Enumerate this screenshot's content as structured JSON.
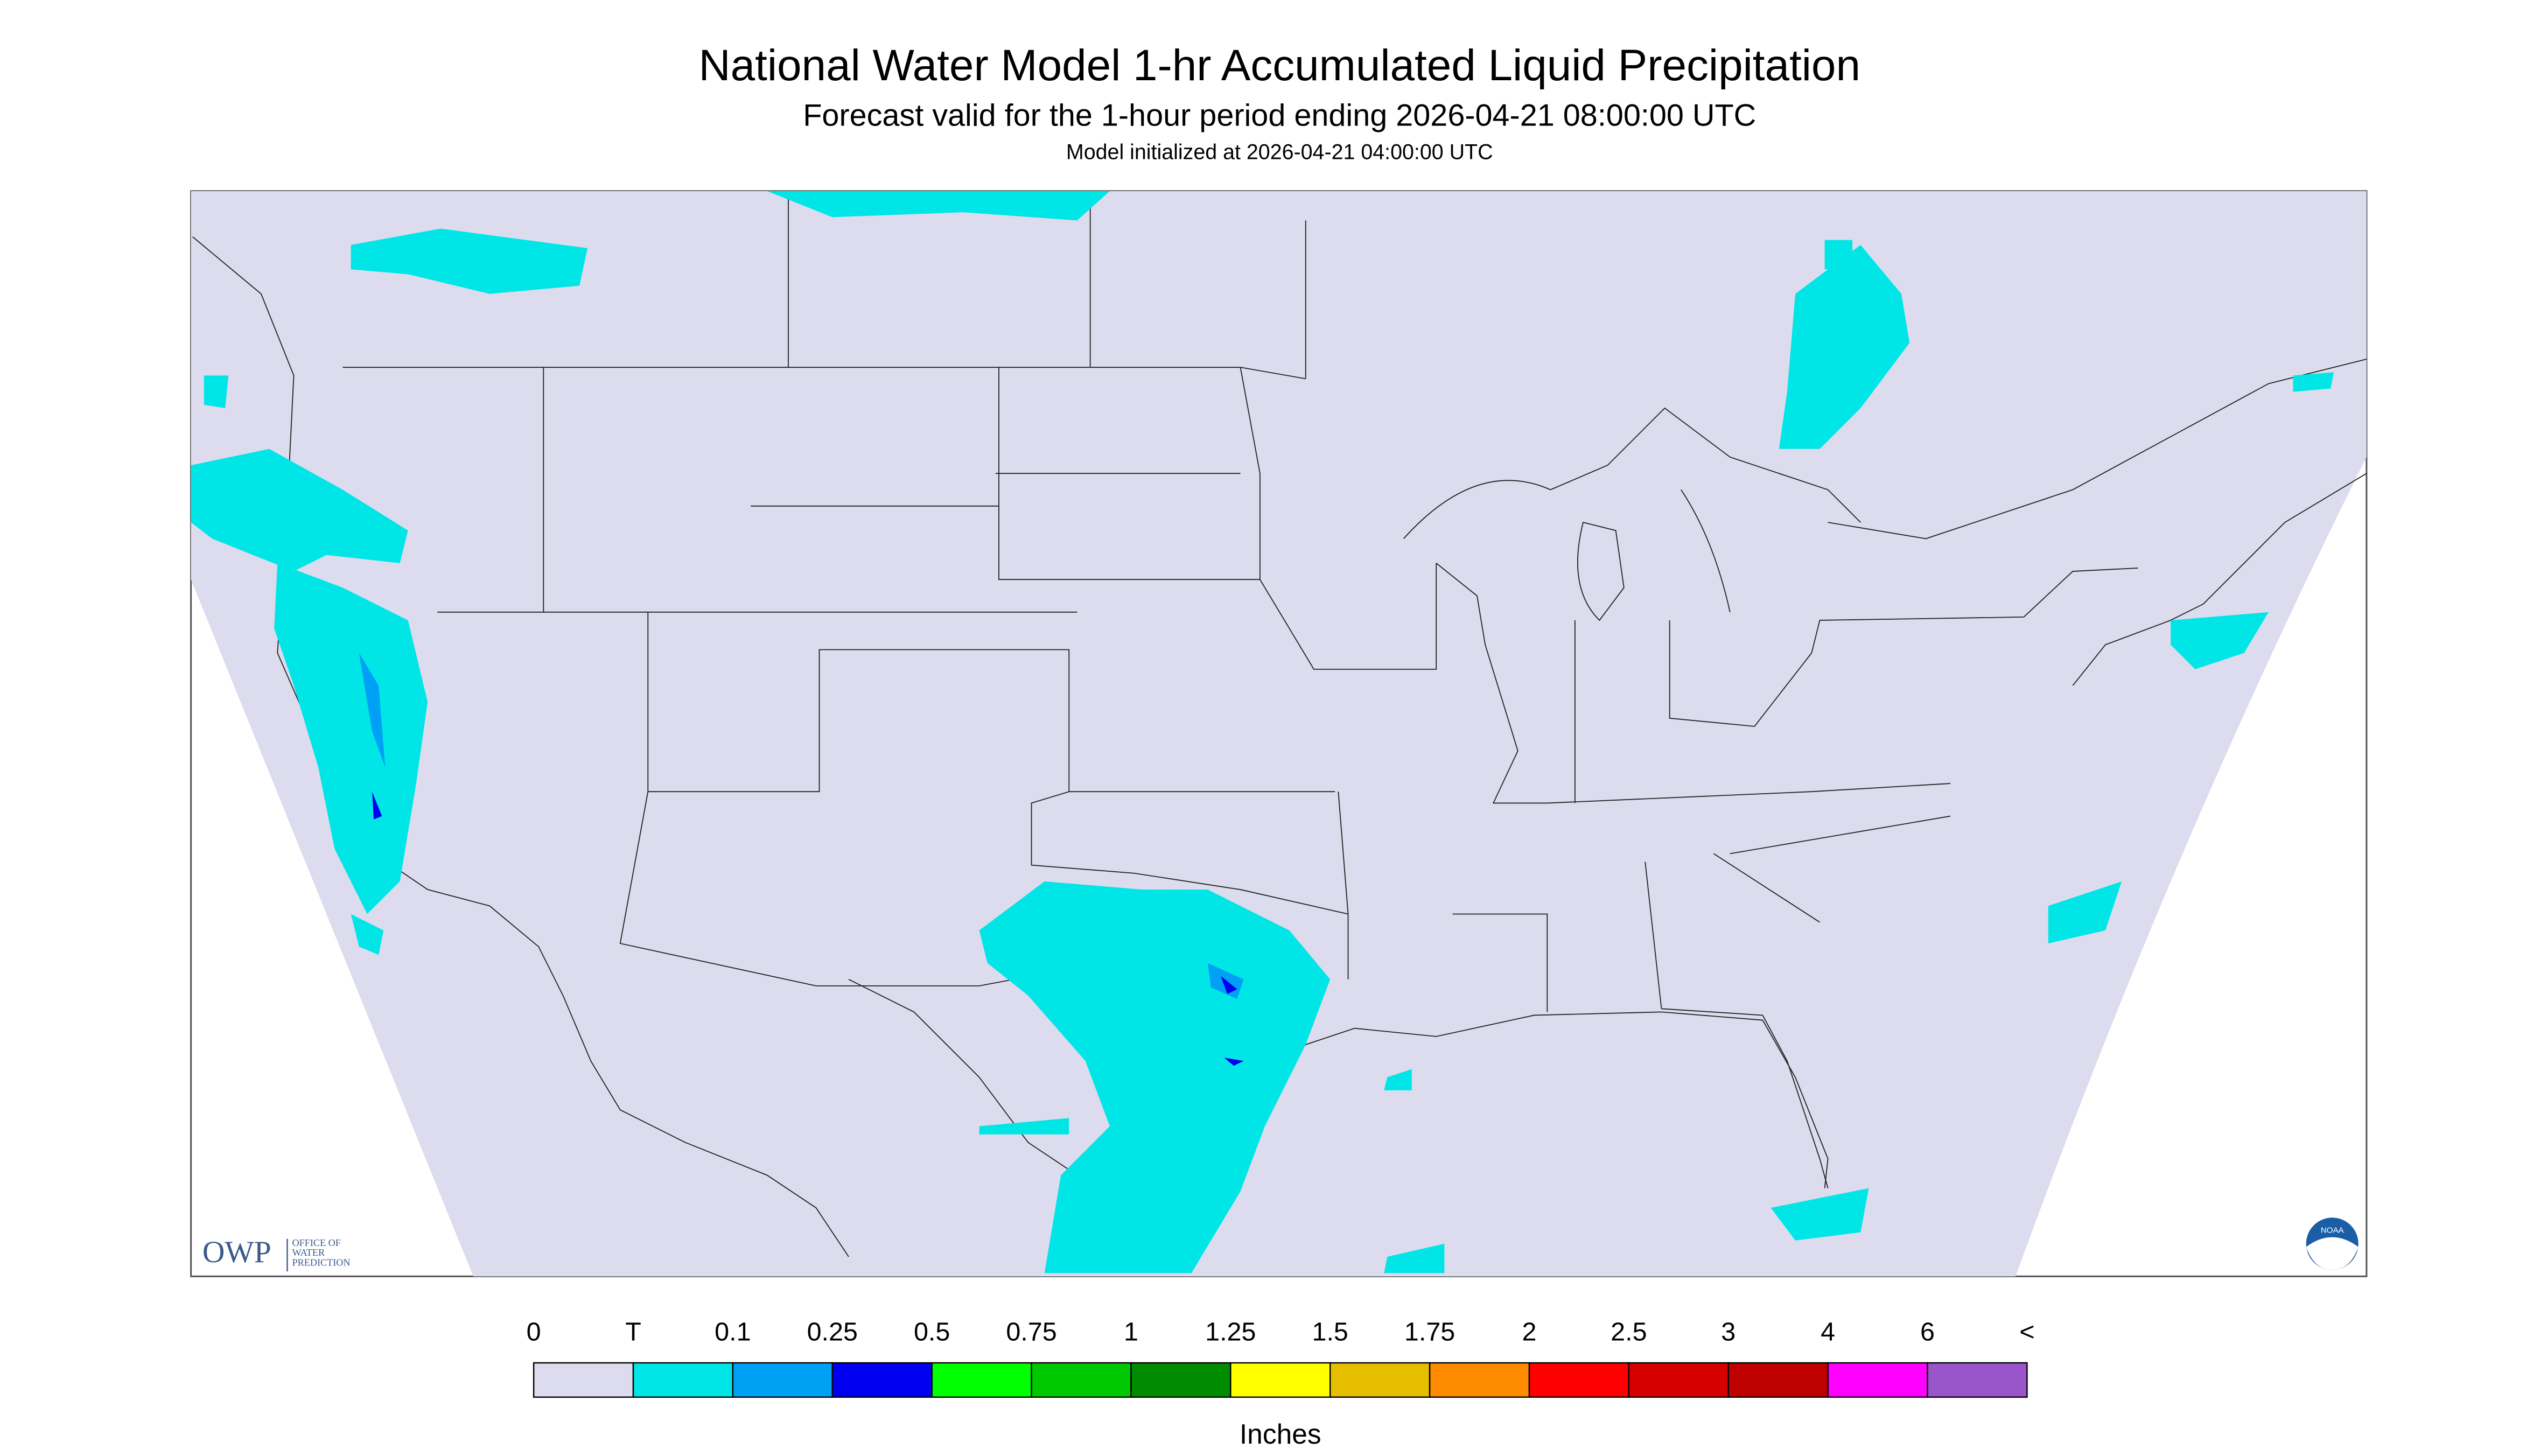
{
  "header": {
    "title": "National Water Model 1-hr Accumulated Liquid Precipitation",
    "subtitle": "Forecast valid for the 1-hour period ending 2026-04-21 08:00:00 UTC",
    "init": "Model initialized at 2026-04-21 04:00:00 UTC"
  },
  "logos": {
    "owp": "OWP",
    "owp_name": [
      "OFFICE OF",
      "WATER",
      "PREDICTION"
    ],
    "noaa": "NOAA"
  },
  "legend": {
    "labels": [
      "0",
      "T",
      "0.1",
      "0.25",
      "0.5",
      "0.75",
      "1",
      "1.25",
      "1.5",
      "1.75",
      "2",
      "2.5",
      "3",
      "4",
      "6",
      "<"
    ],
    "colors": [
      "#dcdcee",
      "#00e6e6",
      "#00a0f5",
      "#0000f0",
      "#00ff00",
      "#00c800",
      "#008c00",
      "#ffff00",
      "#e6be00",
      "#ff8c00",
      "#ff0000",
      "#d70000",
      "#be0000",
      "#ff00ff",
      "#9955c9"
    ],
    "unit": "Inches"
  }
}
